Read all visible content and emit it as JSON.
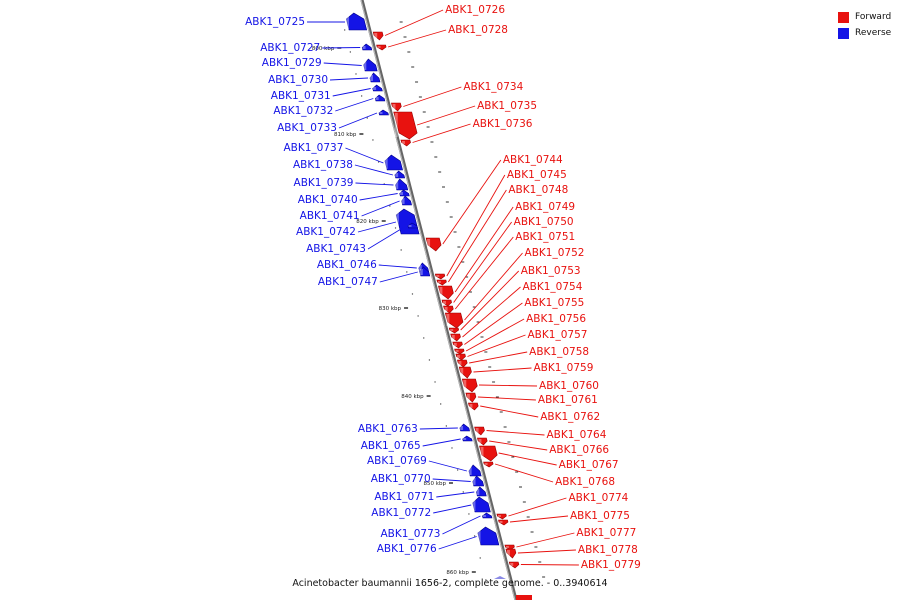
{
  "colors": {
    "forward": "#e8120f",
    "reverse": "#1414e6",
    "axis": "#888888"
  },
  "legend": [
    {
      "label": "Forward",
      "color": "#e8120f"
    },
    {
      "label": "Reverse",
      "color": "#1414e6"
    }
  ],
  "caption": "Acinetobacter baumannii 1656-2, complete genome. - 0..3940614",
  "kbp_marks": [
    "800 kbp",
    "810 kbp",
    "820 kbp",
    "830 kbp",
    "840 kbp",
    "850 kbp",
    "860 kbp"
  ],
  "genes": [
    {
      "name": "ABK1_0725",
      "strand": "reverse"
    },
    {
      "name": "ABK1_0726",
      "strand": "forward"
    },
    {
      "name": "ABK1_0727",
      "strand": "reverse"
    },
    {
      "name": "ABK1_0728",
      "strand": "forward"
    },
    {
      "name": "ABK1_0729",
      "strand": "reverse"
    },
    {
      "name": "ABK1_0730",
      "strand": "reverse"
    },
    {
      "name": "ABK1_0731",
      "strand": "reverse"
    },
    {
      "name": "ABK1_0732",
      "strand": "reverse"
    },
    {
      "name": "ABK1_0733",
      "strand": "reverse"
    },
    {
      "name": "ABK1_0734",
      "strand": "forward"
    },
    {
      "name": "ABK1_0735",
      "strand": "forward"
    },
    {
      "name": "ABK1_0736",
      "strand": "forward"
    },
    {
      "name": "ABK1_0737",
      "strand": "reverse"
    },
    {
      "name": "ABK1_0738",
      "strand": "reverse"
    },
    {
      "name": "ABK1_0739",
      "strand": "reverse"
    },
    {
      "name": "ABK1_0740",
      "strand": "reverse"
    },
    {
      "name": "ABK1_0741",
      "strand": "reverse"
    },
    {
      "name": "ABK1_0742",
      "strand": "reverse"
    },
    {
      "name": "ABK1_0743",
      "strand": "reverse"
    },
    {
      "name": "ABK1_0744",
      "strand": "forward"
    },
    {
      "name": "ABK1_0745",
      "strand": "forward"
    },
    {
      "name": "ABK1_0746",
      "strand": "reverse"
    },
    {
      "name": "ABK1_0747",
      "strand": "reverse"
    },
    {
      "name": "ABK1_0748",
      "strand": "forward"
    },
    {
      "name": "ABK1_0749",
      "strand": "forward"
    },
    {
      "name": "ABK1_0750",
      "strand": "forward"
    },
    {
      "name": "ABK1_0751",
      "strand": "forward"
    },
    {
      "name": "ABK1_0752",
      "strand": "forward"
    },
    {
      "name": "ABK1_0753",
      "strand": "forward"
    },
    {
      "name": "ABK1_0754",
      "strand": "forward"
    },
    {
      "name": "ABK1_0755",
      "strand": "forward"
    },
    {
      "name": "ABK1_0756",
      "strand": "forward"
    },
    {
      "name": "ABK1_0757",
      "strand": "forward"
    },
    {
      "name": "ABK1_0758",
      "strand": "forward"
    },
    {
      "name": "ABK1_0759",
      "strand": "forward"
    },
    {
      "name": "ABK1_0760",
      "strand": "forward"
    },
    {
      "name": "ABK1_0761",
      "strand": "forward"
    },
    {
      "name": "ABK1_0762",
      "strand": "forward"
    },
    {
      "name": "ABK1_0763",
      "strand": "reverse"
    },
    {
      "name": "ABK1_0764",
      "strand": "forward"
    },
    {
      "name": "ABK1_0765",
      "strand": "reverse"
    },
    {
      "name": "ABK1_0766",
      "strand": "forward"
    },
    {
      "name": "ABK1_0767",
      "strand": "forward"
    },
    {
      "name": "ABK1_0768",
      "strand": "forward"
    },
    {
      "name": "ABK1_0769",
      "strand": "reverse"
    },
    {
      "name": "ABK1_0770",
      "strand": "reverse"
    },
    {
      "name": "ABK1_0771",
      "strand": "reverse"
    },
    {
      "name": "ABK1_0772",
      "strand": "reverse"
    },
    {
      "name": "ABK1_0773",
      "strand": "reverse"
    },
    {
      "name": "ABK1_0774",
      "strand": "forward"
    },
    {
      "name": "ABK1_0775",
      "strand": "forward"
    },
    {
      "name": "ABK1_0776",
      "strand": "reverse"
    },
    {
      "name": "ABK1_0777",
      "strand": "forward"
    },
    {
      "name": "ABK1_0778",
      "strand": "forward"
    },
    {
      "name": "ABK1_0779",
      "strand": "forward"
    }
  ]
}
